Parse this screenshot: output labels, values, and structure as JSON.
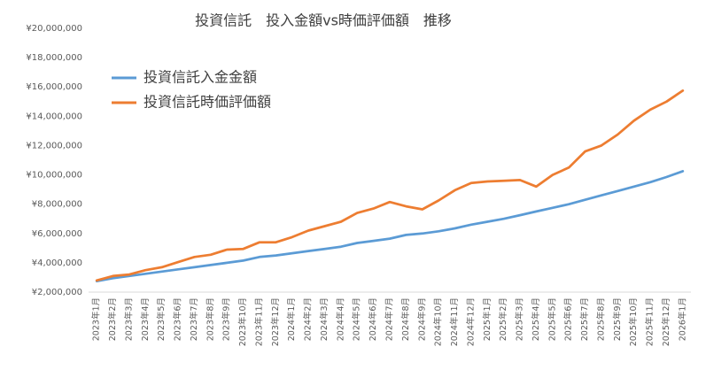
{
  "chart_data": {
    "type": "line",
    "title": "投資信託　投入金額vs時価評価額　推移",
    "categories": [
      "2023年1月",
      "2023年2月",
      "2023年3月",
      "2023年4月",
      "2023年5月",
      "2023年6月",
      "2023年7月",
      "2023年8月",
      "2023年9月",
      "2023年10月",
      "2023年11月",
      "2023年12月",
      "2024年1月",
      "2024年2月",
      "2024年3月",
      "2024年4月",
      "2024年5月",
      "2024年6月",
      "2024年7月",
      "2024年8月",
      "2024年9月",
      "2024年10月",
      "2024年11月",
      "2024年12月",
      "2025年1月",
      "2025年2月",
      "2025年3月",
      "2025年4月",
      "2025年5月",
      "2025年6月",
      "2025年7月",
      "2025年8月",
      "2025年9月",
      "2025年10月",
      "2025年11月",
      "2025年12月",
      "2026年1月"
    ],
    "series": [
      {
        "name": "投資信託入金金額",
        "color": "#5b9bd5",
        "values": [
          2750000,
          2950000,
          3100000,
          3250000,
          3400000,
          3550000,
          3700000,
          3850000,
          4000000,
          4150000,
          4400000,
          4500000,
          4650000,
          4800000,
          4950000,
          5100000,
          5350000,
          5500000,
          5650000,
          5900000,
          6000000,
          6150000,
          6350000,
          6600000,
          6800000,
          7000000,
          7250000,
          7500000,
          7750000,
          8000000,
          8300000,
          8600000,
          8900000,
          9200000,
          9500000,
          9850000,
          10250000
        ]
      },
      {
        "name": "投資信託時価評価額",
        "color": "#ed7d31",
        "values": [
          2800000,
          3100000,
          3200000,
          3500000,
          3700000,
          4050000,
          4400000,
          4550000,
          4900000,
          4950000,
          5400000,
          5400000,
          5750000,
          6200000,
          6500000,
          6800000,
          7400000,
          7700000,
          8150000,
          7850000,
          7650000,
          8250000,
          8950000,
          9450000,
          9550000,
          9600000,
          9650000,
          9200000,
          10000000,
          10500000,
          11600000,
          12000000,
          12750000,
          13700000,
          14450000,
          15000000,
          15750000
        ]
      }
    ],
    "ylim": [
      2000000,
      20000000
    ],
    "yticks": [
      {
        "value": 2000000,
        "label": "¥2,000,000"
      },
      {
        "value": 4000000,
        "label": "¥4,000,000"
      },
      {
        "value": 6000000,
        "label": "¥6,000,000"
      },
      {
        "value": 8000000,
        "label": "¥8,000,000"
      },
      {
        "value": 10000000,
        "label": "¥10,000,000"
      },
      {
        "value": 12000000,
        "label": "¥12,000,000"
      },
      {
        "value": 14000000,
        "label": "¥14,000,000"
      },
      {
        "value": 16000000,
        "label": "¥16,000,000"
      },
      {
        "value": 18000000,
        "label": "¥18,000,000"
      },
      {
        "value": 20000000,
        "label": "¥20,000,000"
      }
    ],
    "grid": false,
    "legend": "upper-left"
  }
}
